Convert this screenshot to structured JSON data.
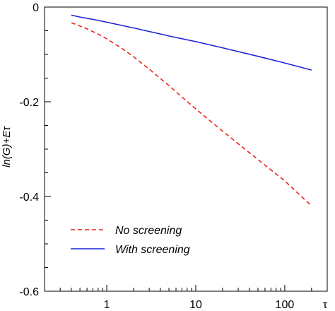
{
  "chart_data": {
    "type": "line",
    "title": "",
    "xlabel": "τ",
    "ylabel": "ln(G)+Eτ",
    "xscale": "log",
    "xlim": [
      0.2,
      300
    ],
    "ylim": [
      -0.6,
      0
    ],
    "xticks": [
      {
        "value": 1,
        "label": "1"
      },
      {
        "value": 10,
        "label": "10"
      },
      {
        "value": 100,
        "label": "100"
      }
    ],
    "yticks": [
      {
        "value": 0,
        "label": "0"
      },
      {
        "value": -0.2,
        "label": "-0.2"
      },
      {
        "value": -0.4,
        "label": "-0.4"
      },
      {
        "value": -0.6,
        "label": "-0.6"
      }
    ],
    "grid": false,
    "legend_position": "bottom-left",
    "series": [
      {
        "name": "No screening",
        "color": "#e8261f",
        "dash": "dashed",
        "x": [
          0.4,
          0.5,
          0.6,
          0.8,
          1,
          1.5,
          2,
          3,
          5,
          10,
          20,
          50,
          100,
          200
        ],
        "y": [
          -0.033,
          -0.04,
          -0.046,
          -0.057,
          -0.067,
          -0.088,
          -0.105,
          -0.131,
          -0.166,
          -0.215,
          -0.262,
          -0.322,
          -0.367,
          -0.42
        ]
      },
      {
        "name": "With screening",
        "color": "#1e22d4",
        "dash": "solid",
        "x": [
          0.4,
          0.5,
          0.7,
          1,
          2,
          5,
          10,
          20,
          50,
          100,
          200
        ],
        "y": [
          -0.017,
          -0.021,
          -0.026,
          -0.032,
          -0.044,
          -0.061,
          -0.073,
          -0.086,
          -0.104,
          -0.118,
          -0.133
        ]
      }
    ]
  }
}
